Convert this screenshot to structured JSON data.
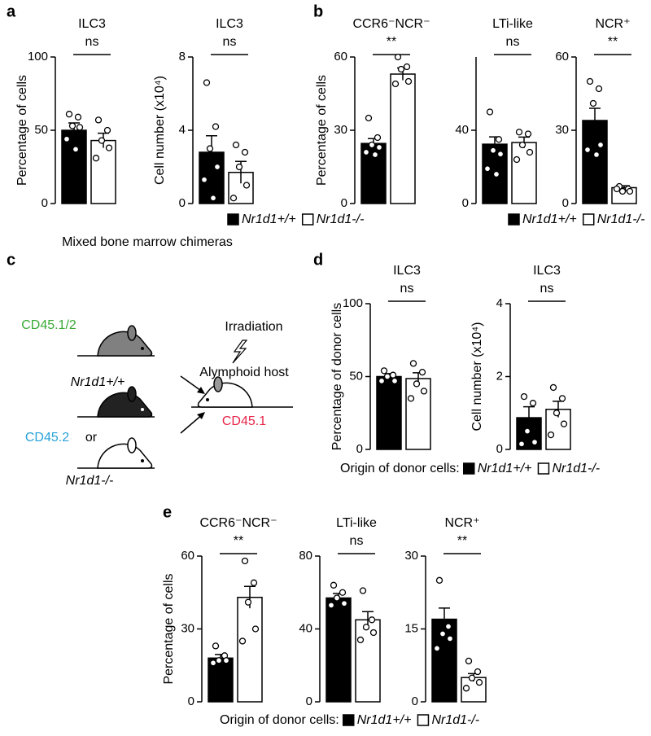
{
  "panel_labels": [
    "a",
    "b",
    "c",
    "d",
    "e"
  ],
  "chart_data": [
    {
      "type": "bar",
      "title": "ILC3",
      "annotation": "ns",
      "ylabel": "Percentage of cells",
      "ylim": [
        0,
        100
      ],
      "yticks": [
        0,
        50,
        100
      ],
      "colors": [
        "#000000",
        "#ffffff"
      ],
      "values": [
        50,
        43
      ],
      "errors": [
        5,
        5
      ],
      "points": [
        [
          61,
          59,
          53,
          52,
          44,
          37
        ],
        [
          57,
          50,
          43,
          38,
          31
        ]
      ]
    },
    {
      "type": "bar",
      "title": "ILC3",
      "annotation": "ns",
      "ylabel": "Cell number (x10⁴)",
      "ylim": [
        0,
        8
      ],
      "yticks": [
        0,
        4,
        8
      ],
      "colors": [
        "#000000",
        "#ffffff"
      ],
      "values": [
        2.8,
        1.7
      ],
      "errors": [
        0.9,
        0.6
      ],
      "points": [
        [
          6.6,
          4.2,
          3.0,
          2.0,
          1.3,
          0.3
        ],
        [
          3.2,
          2.8,
          2.0,
          1.0,
          0.3
        ]
      ]
    },
    {
      "type": "bar",
      "title": "CCR6⁻NCR⁻",
      "annotation": "**",
      "ylabel": "Percentage of cells",
      "ylim": [
        0,
        60
      ],
      "yticks": [
        0,
        30,
        60
      ],
      "colors": [
        "#000000",
        "#ffffff"
      ],
      "values": [
        24.6,
        53
      ],
      "errors": [
        2,
        2.5
      ],
      "points": [
        [
          35,
          27,
          24,
          23,
          21,
          20
        ],
        [
          60,
          56,
          55,
          50,
          49
        ]
      ]
    },
    {
      "type": "bar",
      "title": "LTi-like",
      "annotation": "ns",
      "ylim": [
        0,
        80
      ],
      "yticks": [
        0,
        40
      ],
      "colors": [
        "#000000",
        "#ffffff"
      ],
      "values": [
        32.4,
        33.3
      ],
      "errors": [
        4,
        3
      ],
      "points": [
        [
          50,
          35,
          29,
          27,
          19,
          16
        ],
        [
          39,
          38,
          32,
          28,
          24
        ]
      ]
    },
    {
      "type": "bar",
      "title": "NCR⁺",
      "annotation": "**",
      "ylim": [
        0,
        60
      ],
      "yticks": [
        0,
        30,
        60
      ],
      "colors": [
        "#000000",
        "#ffffff"
      ],
      "values": [
        34,
        6.5
      ],
      "errors": [
        5,
        0.8
      ],
      "points": [
        [
          50,
          47,
          41,
          24,
          22,
          20
        ],
        [
          7,
          6,
          5,
          5,
          6
        ]
      ]
    },
    {
      "type": "bar",
      "title": "ILC3",
      "annotation": "ns",
      "ylabel": "Percentage of donor cells",
      "ylim": [
        0,
        100
      ],
      "yticks": [
        0,
        50,
        100
      ],
      "colors": [
        "#000000",
        "#ffffff"
      ],
      "values": [
        50,
        48.6
      ],
      "errors": [
        2,
        4
      ],
      "points": [
        [
          54,
          51,
          50,
          47,
          47
        ],
        [
          59,
          53,
          45,
          40,
          35
        ]
      ]
    },
    {
      "type": "bar",
      "title": "ILC3",
      "annotation": "ns",
      "ylabel": "Cell number (x10⁴)",
      "ylim": [
        0,
        4
      ],
      "yticks": [
        0,
        2,
        4
      ],
      "colors": [
        "#000000",
        "#ffffff"
      ],
      "values": [
        0.87,
        1.1
      ],
      "errors": [
        0.3,
        0.22
      ],
      "points": [
        [
          1.45,
          1.27,
          0.5,
          0.2,
          0.15
        ],
        [
          1.7,
          1.4,
          1.0,
          0.7,
          0.4
        ]
      ]
    },
    {
      "type": "bar",
      "title": "CCR6⁻NCR⁻",
      "annotation": "**",
      "ylabel": "Percentage of cells",
      "ylim": [
        0,
        60
      ],
      "yticks": [
        0,
        30,
        60
      ],
      "colors": [
        "#000000",
        "#ffffff"
      ],
      "values": [
        18,
        43
      ],
      "errors": [
        1.5,
        4.5
      ],
      "points": [
        [
          23,
          19,
          17,
          17,
          16
        ],
        [
          58,
          49,
          41,
          30,
          25
        ]
      ]
    },
    {
      "type": "bar",
      "title": "LTi-like",
      "annotation": "ns",
      "ylim": [
        0,
        80
      ],
      "yticks": [
        0,
        40,
        80
      ],
      "colors": [
        "#000000",
        "#ffffff"
      ],
      "values": [
        57,
        45
      ],
      "errors": [
        2.5,
        4.5
      ],
      "points": [
        [
          64,
          60,
          57,
          54,
          53
        ],
        [
          61,
          45,
          41,
          38,
          34
        ]
      ]
    },
    {
      "type": "bar",
      "title": "NCR⁺",
      "annotation": "**",
      "ylim": [
        0,
        30
      ],
      "yticks": [
        0,
        15,
        30
      ],
      "colors": [
        "#000000",
        "#ffffff"
      ],
      "values": [
        17,
        5
      ],
      "errors": [
        2.3,
        0.8
      ],
      "points": [
        [
          25,
          15.5,
          14,
          13,
          11
        ],
        [
          8.4,
          6.2,
          4.9,
          4,
          2.8
        ]
      ]
    }
  ],
  "legends": [
    {
      "entries": [
        {
          "name": "Nr1d1+/+",
          "color": "#000000"
        },
        {
          "name": "Nr1d1-/-",
          "color": "#ffffff"
        }
      ]
    },
    {
      "entries": [
        {
          "name": "Nr1d1+/+",
          "color": "#000000"
        },
        {
          "name": "Nr1d1-/-",
          "color": "#ffffff"
        }
      ]
    },
    {
      "title": "Origin of donor cells:",
      "entries": [
        {
          "name": "Nr1d1+/+",
          "color": "#000000"
        },
        {
          "name": "Nr1d1-/-",
          "color": "#ffffff"
        }
      ]
    },
    {
      "title": "Origin of donor cells:",
      "entries": [
        {
          "name": "Nr1d1+/+",
          "color": "#000000"
        },
        {
          "name": "Nr1d1-/-",
          "color": "#ffffff"
        }
      ]
    }
  ],
  "diagram": {
    "title": "Mixed bone marrow chimeras",
    "donor_1": "CD45.1/2",
    "donor_2": "Nr1d1+/+",
    "donor_3": "CD45.2",
    "or": "or",
    "donor_4": "Nr1d1-/-",
    "irradiation": "Irradiation",
    "host": "Alymphoid host",
    "host_marker": "CD45.1"
  }
}
